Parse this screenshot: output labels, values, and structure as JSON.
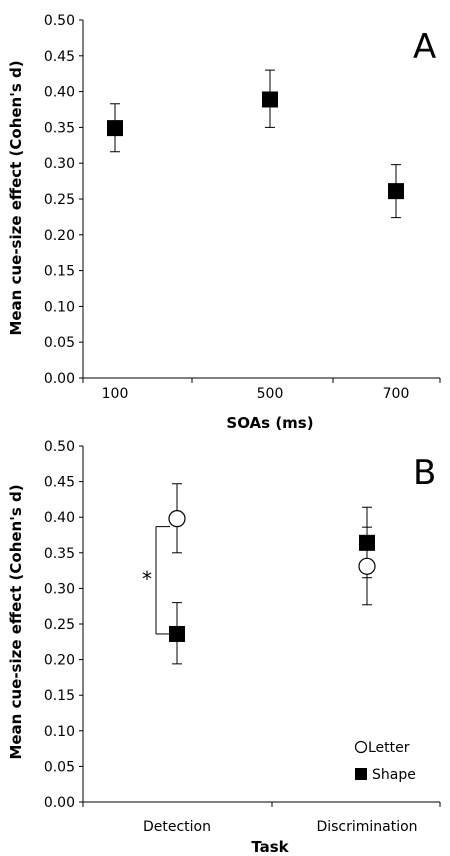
{
  "chart_data": [
    {
      "type": "scatter",
      "panel_label": "A",
      "xlabel": "SOAs (ms)",
      "ylabel": "Mean cue-size effect (Cohen's d)",
      "categories": [
        "100",
        "500",
        "700"
      ],
      "ylim": [
        0,
        0.5
      ],
      "yticks": [
        "0.00",
        "0.05",
        "0.10",
        "0.15",
        "0.20",
        "0.25",
        "0.30",
        "0.35",
        "0.40",
        "0.45",
        "0.50"
      ],
      "grid": false,
      "series": [
        {
          "marker": "filled-square",
          "values": [
            0.349,
            0.389,
            0.261
          ],
          "error_upper": [
            0.383,
            0.43,
            0.298
          ],
          "error_lower": [
            0.316,
            0.35,
            0.224
          ]
        }
      ]
    },
    {
      "type": "scatter",
      "panel_label": "B",
      "xlabel": "Task",
      "ylabel": "Mean cue-size effect (Cohen's d)",
      "categories": [
        "Detection",
        "Discrimination"
      ],
      "ylim": [
        0,
        0.5
      ],
      "yticks": [
        "0.00",
        "0.05",
        "0.10",
        "0.15",
        "0.20",
        "0.25",
        "0.30",
        "0.35",
        "0.40",
        "0.45",
        "0.50"
      ],
      "grid": false,
      "legend_position": "bottom-right",
      "annotation": "*",
      "series": [
        {
          "name": "Letter",
          "marker": "open-circle",
          "values": [
            0.398,
            0.331
          ],
          "error_upper": [
            0.447,
            0.386
          ],
          "error_lower": [
            0.35,
            0.277
          ]
        },
        {
          "name": "Shape",
          "marker": "filled-square",
          "values": [
            0.236,
            0.364
          ],
          "error_upper": [
            0.28,
            0.414
          ],
          "error_lower": [
            0.194,
            0.315
          ]
        }
      ]
    }
  ]
}
